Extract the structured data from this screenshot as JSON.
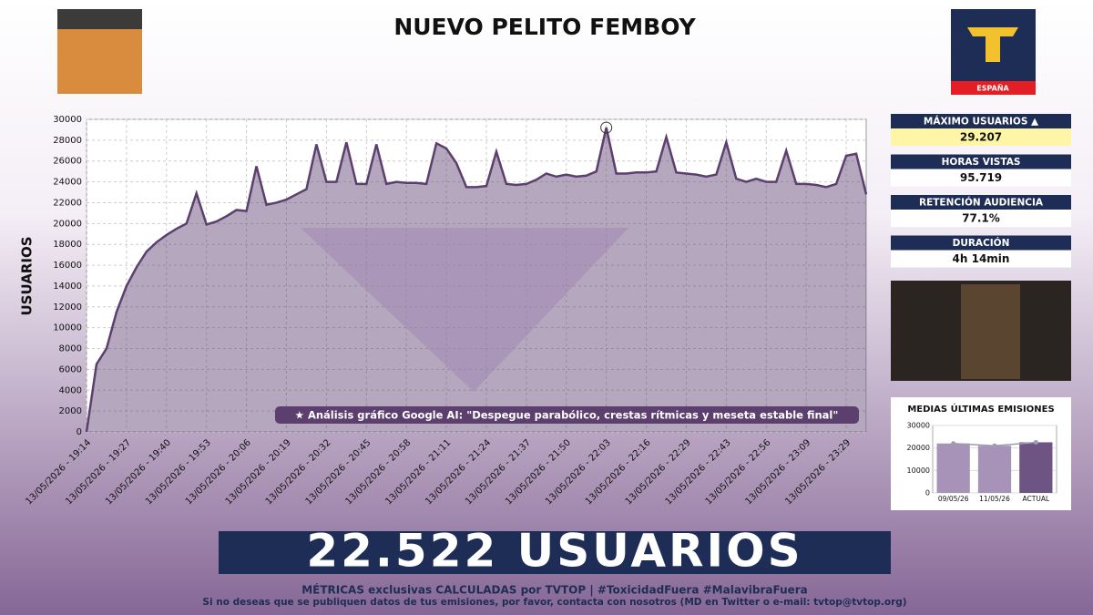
{
  "header": {
    "title": "NUEVO PELITO FEMBOY",
    "logo_text": "ESPAÑA"
  },
  "stats": [
    {
      "label": "MÁXIMO USUARIOS ▲",
      "value": "29.207"
    },
    {
      "label": "HORAS VISTAS",
      "value": "95.719"
    },
    {
      "label": "RETENCIÓN AUDIENCIA",
      "value": "77.1%"
    },
    {
      "label": "DURACIÓN",
      "value": "4h 14min"
    }
  ],
  "banner": "22.522 USUARIOS",
  "footer": [
    "MÉTRICAS exclusivas CALCULADAS por TVTOP | #ToxicidadFuera #MalavibraFuera",
    "Si no deseas que se publiquen datos de tus emisiones, por favor, contacta con nosotros (MD en Twitter o e-mail: tvtop@tvtop.org)"
  ],
  "chart_data": [
    {
      "type": "area",
      "y_label": "USUARIOS",
      "annotation": "★ Análisis gráfico Google AI: \"Despegue parabólico, crestas rítmicas y meseta estable final\"",
      "color": "#5c3f6e",
      "grid": true,
      "ylim": [
        0,
        30000
      ],
      "yticks": [
        0,
        2000,
        4000,
        6000,
        8000,
        10000,
        12000,
        14000,
        16000,
        18000,
        20000,
        22000,
        24000,
        26000,
        28000,
        30000
      ],
      "categories": [
        "13/05/2026 - 19:14",
        null,
        null,
        null,
        "13/05/2026 - 19:27",
        null,
        null,
        null,
        "13/05/2026 - 19:40",
        null,
        null,
        null,
        "13/05/2026 - 19:53",
        null,
        null,
        null,
        "13/05/2026 - 20:06",
        null,
        null,
        null,
        "13/05/2026 - 20:19",
        null,
        null,
        null,
        "13/05/2026 - 20:32",
        null,
        null,
        null,
        "13/05/2026 - 20:45",
        null,
        null,
        null,
        "13/05/2026 - 20:58",
        null,
        null,
        null,
        "13/05/2026 - 21:11",
        null,
        null,
        null,
        "13/05/2026 - 21:24",
        null,
        null,
        null,
        "13/05/2026 - 21:37",
        null,
        null,
        null,
        "13/05/2026 - 21:50",
        null,
        null,
        null,
        "13/05/2026 - 22:03",
        null,
        null,
        null,
        "13/05/2026 - 22:16",
        null,
        null,
        null,
        "13/05/2026 - 22:29",
        null,
        null,
        null,
        "13/05/2026 - 22:43",
        null,
        null,
        null,
        "13/05/2026 - 22:56",
        null,
        null,
        null,
        "13/05/2026 - 23:09",
        null,
        null,
        null,
        "13/05/2026 - 23:29",
        null,
        null
      ],
      "values": [
        0,
        6500,
        8000,
        11500,
        14000,
        15800,
        17300,
        18200,
        18900,
        19500,
        20000,
        22900,
        19900,
        20200,
        20700,
        21300,
        21200,
        25500,
        21800,
        22000,
        22300,
        22800,
        23300,
        27600,
        24000,
        24000,
        27800,
        23800,
        23800,
        27600,
        23800,
        24000,
        23900,
        23900,
        23800,
        27700,
        27200,
        25800,
        23500,
        23500,
        23600,
        26900,
        23800,
        23700,
        23800,
        24200,
        24800,
        24500,
        24700,
        24500,
        24600,
        25000,
        29207,
        24800,
        24800,
        24900,
        24900,
        25000,
        28300,
        24900,
        24800,
        24700,
        24500,
        24700,
        27800,
        24300,
        24000,
        24300,
        24000,
        24000,
        27000,
        23800,
        23800,
        23700,
        23500,
        23800,
        26500,
        26700,
        22800
      ]
    },
    {
      "type": "bar",
      "title": "MEDIAS ÚLTIMAS EMISIONES",
      "categories": [
        "09/05/26",
        "11/05/26",
        "ACTUAL"
      ],
      "values": [
        22000,
        21000,
        22522
      ],
      "colors": [
        "#a893b8",
        "#a893b8",
        "#6e5482"
      ],
      "line_color": "#9c9cb4",
      "ylim": [
        0,
        30000
      ],
      "yticks": [
        0,
        10000,
        20000,
        30000
      ]
    }
  ]
}
